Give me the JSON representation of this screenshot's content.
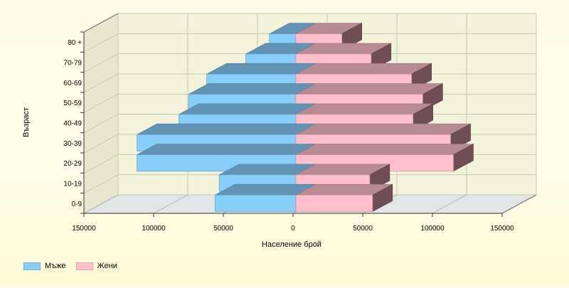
{
  "chart_data": {
    "type": "bar",
    "orientation": "horizontal-population-pyramid",
    "three_d": true,
    "categories": [
      "0-9",
      "10-19",
      "20-29",
      "30-39",
      "40-49",
      "50-59",
      "60-69",
      "70-79",
      "80 +"
    ],
    "series": [
      {
        "name": "Мъже",
        "color": "#87cefa",
        "side": "left",
        "values": [
          58000,
          55000,
          114000,
          114000,
          84000,
          77000,
          64000,
          36000,
          19000
        ]
      },
      {
        "name": "Жени",
        "color": "#ffc0cb",
        "side": "right",
        "values": [
          55000,
          53000,
          113000,
          111000,
          84000,
          91000,
          83000,
          54000,
          33000
        ]
      }
    ],
    "xlabel": "Население брой",
    "ylabel": "Възраст",
    "x_ticks": [
      "150000",
      "100000",
      "50000",
      "0",
      "50000",
      "100000",
      "150000"
    ],
    "xlim": [
      -150000,
      150000
    ],
    "grid": true,
    "legend_position": "bottom-left"
  }
}
